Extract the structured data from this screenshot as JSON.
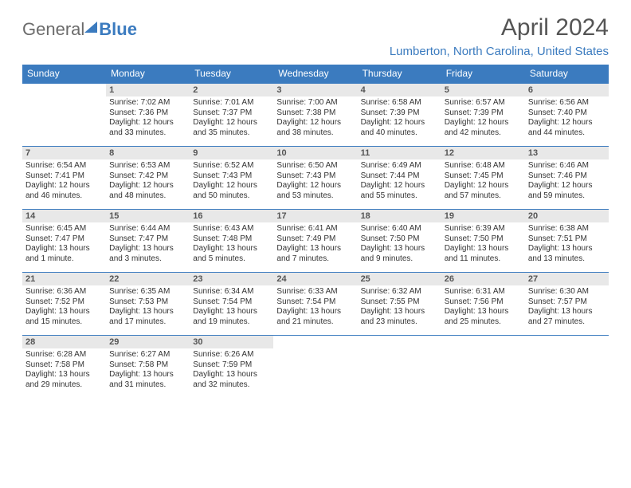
{
  "logo": {
    "word1": "General",
    "word2": "Blue"
  },
  "title": "April 2024",
  "location": "Lumberton, North Carolina, United States",
  "day_headers": [
    "Sunday",
    "Monday",
    "Tuesday",
    "Wednesday",
    "Thursday",
    "Friday",
    "Saturday"
  ],
  "colors": {
    "brand_blue": "#3b7bbf",
    "header_text": "#ffffff",
    "daynum_bg": "#e8e8e8",
    "text": "#333333",
    "muted": "#555555"
  },
  "weeks": [
    [
      null,
      {
        "n": "1",
        "sr": "Sunrise: 7:02 AM",
        "ss": "Sunset: 7:36 PM",
        "d1": "Daylight: 12 hours",
        "d2": "and 33 minutes."
      },
      {
        "n": "2",
        "sr": "Sunrise: 7:01 AM",
        "ss": "Sunset: 7:37 PM",
        "d1": "Daylight: 12 hours",
        "d2": "and 35 minutes."
      },
      {
        "n": "3",
        "sr": "Sunrise: 7:00 AM",
        "ss": "Sunset: 7:38 PM",
        "d1": "Daylight: 12 hours",
        "d2": "and 38 minutes."
      },
      {
        "n": "4",
        "sr": "Sunrise: 6:58 AM",
        "ss": "Sunset: 7:39 PM",
        "d1": "Daylight: 12 hours",
        "d2": "and 40 minutes."
      },
      {
        "n": "5",
        "sr": "Sunrise: 6:57 AM",
        "ss": "Sunset: 7:39 PM",
        "d1": "Daylight: 12 hours",
        "d2": "and 42 minutes."
      },
      {
        "n": "6",
        "sr": "Sunrise: 6:56 AM",
        "ss": "Sunset: 7:40 PM",
        "d1": "Daylight: 12 hours",
        "d2": "and 44 minutes."
      }
    ],
    [
      {
        "n": "7",
        "sr": "Sunrise: 6:54 AM",
        "ss": "Sunset: 7:41 PM",
        "d1": "Daylight: 12 hours",
        "d2": "and 46 minutes."
      },
      {
        "n": "8",
        "sr": "Sunrise: 6:53 AM",
        "ss": "Sunset: 7:42 PM",
        "d1": "Daylight: 12 hours",
        "d2": "and 48 minutes."
      },
      {
        "n": "9",
        "sr": "Sunrise: 6:52 AM",
        "ss": "Sunset: 7:43 PM",
        "d1": "Daylight: 12 hours",
        "d2": "and 50 minutes."
      },
      {
        "n": "10",
        "sr": "Sunrise: 6:50 AM",
        "ss": "Sunset: 7:43 PM",
        "d1": "Daylight: 12 hours",
        "d2": "and 53 minutes."
      },
      {
        "n": "11",
        "sr": "Sunrise: 6:49 AM",
        "ss": "Sunset: 7:44 PM",
        "d1": "Daylight: 12 hours",
        "d2": "and 55 minutes."
      },
      {
        "n": "12",
        "sr": "Sunrise: 6:48 AM",
        "ss": "Sunset: 7:45 PM",
        "d1": "Daylight: 12 hours",
        "d2": "and 57 minutes."
      },
      {
        "n": "13",
        "sr": "Sunrise: 6:46 AM",
        "ss": "Sunset: 7:46 PM",
        "d1": "Daylight: 12 hours",
        "d2": "and 59 minutes."
      }
    ],
    [
      {
        "n": "14",
        "sr": "Sunrise: 6:45 AM",
        "ss": "Sunset: 7:47 PM",
        "d1": "Daylight: 13 hours",
        "d2": "and 1 minute."
      },
      {
        "n": "15",
        "sr": "Sunrise: 6:44 AM",
        "ss": "Sunset: 7:47 PM",
        "d1": "Daylight: 13 hours",
        "d2": "and 3 minutes."
      },
      {
        "n": "16",
        "sr": "Sunrise: 6:43 AM",
        "ss": "Sunset: 7:48 PM",
        "d1": "Daylight: 13 hours",
        "d2": "and 5 minutes."
      },
      {
        "n": "17",
        "sr": "Sunrise: 6:41 AM",
        "ss": "Sunset: 7:49 PM",
        "d1": "Daylight: 13 hours",
        "d2": "and 7 minutes."
      },
      {
        "n": "18",
        "sr": "Sunrise: 6:40 AM",
        "ss": "Sunset: 7:50 PM",
        "d1": "Daylight: 13 hours",
        "d2": "and 9 minutes."
      },
      {
        "n": "19",
        "sr": "Sunrise: 6:39 AM",
        "ss": "Sunset: 7:50 PM",
        "d1": "Daylight: 13 hours",
        "d2": "and 11 minutes."
      },
      {
        "n": "20",
        "sr": "Sunrise: 6:38 AM",
        "ss": "Sunset: 7:51 PM",
        "d1": "Daylight: 13 hours",
        "d2": "and 13 minutes."
      }
    ],
    [
      {
        "n": "21",
        "sr": "Sunrise: 6:36 AM",
        "ss": "Sunset: 7:52 PM",
        "d1": "Daylight: 13 hours",
        "d2": "and 15 minutes."
      },
      {
        "n": "22",
        "sr": "Sunrise: 6:35 AM",
        "ss": "Sunset: 7:53 PM",
        "d1": "Daylight: 13 hours",
        "d2": "and 17 minutes."
      },
      {
        "n": "23",
        "sr": "Sunrise: 6:34 AM",
        "ss": "Sunset: 7:54 PM",
        "d1": "Daylight: 13 hours",
        "d2": "and 19 minutes."
      },
      {
        "n": "24",
        "sr": "Sunrise: 6:33 AM",
        "ss": "Sunset: 7:54 PM",
        "d1": "Daylight: 13 hours",
        "d2": "and 21 minutes."
      },
      {
        "n": "25",
        "sr": "Sunrise: 6:32 AM",
        "ss": "Sunset: 7:55 PM",
        "d1": "Daylight: 13 hours",
        "d2": "and 23 minutes."
      },
      {
        "n": "26",
        "sr": "Sunrise: 6:31 AM",
        "ss": "Sunset: 7:56 PM",
        "d1": "Daylight: 13 hours",
        "d2": "and 25 minutes."
      },
      {
        "n": "27",
        "sr": "Sunrise: 6:30 AM",
        "ss": "Sunset: 7:57 PM",
        "d1": "Daylight: 13 hours",
        "d2": "and 27 minutes."
      }
    ],
    [
      {
        "n": "28",
        "sr": "Sunrise: 6:28 AM",
        "ss": "Sunset: 7:58 PM",
        "d1": "Daylight: 13 hours",
        "d2": "and 29 minutes."
      },
      {
        "n": "29",
        "sr": "Sunrise: 6:27 AM",
        "ss": "Sunset: 7:58 PM",
        "d1": "Daylight: 13 hours",
        "d2": "and 31 minutes."
      },
      {
        "n": "30",
        "sr": "Sunrise: 6:26 AM",
        "ss": "Sunset: 7:59 PM",
        "d1": "Daylight: 13 hours",
        "d2": "and 32 minutes."
      },
      null,
      null,
      null,
      null
    ]
  ]
}
